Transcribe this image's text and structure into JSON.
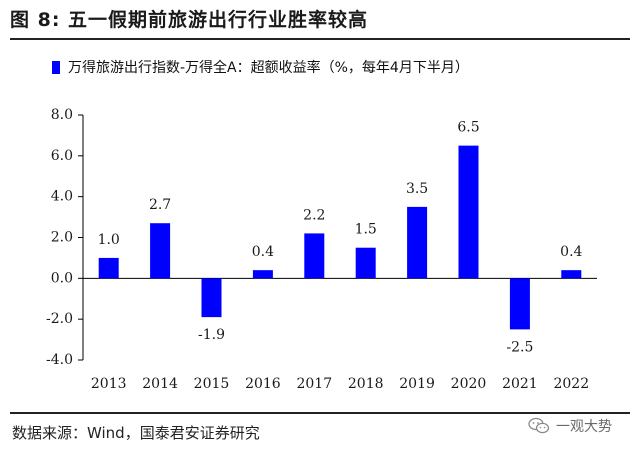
{
  "title": "图 8:  五一假期前旅游出行行业胜率较高",
  "source": "数据来源：Wind，国泰君安证券研究",
  "watermark": "一观大势",
  "colors": {
    "bar": "#0000ff",
    "text": "#1a1a1a",
    "axis": "#000000"
  },
  "chart_data": {
    "type": "bar",
    "title": "",
    "legend": "万得旅游出行指数-万得全A：超额收益率（%，每年4月下半月）",
    "legend_position": "top-left",
    "categories": [
      "2013",
      "2014",
      "2015",
      "2016",
      "2017",
      "2018",
      "2019",
      "2020",
      "2021",
      "2022"
    ],
    "values": [
      1.0,
      2.7,
      -1.9,
      0.4,
      2.2,
      1.5,
      3.5,
      6.5,
      -2.5,
      0.4
    ],
    "data_labels": [
      "1.0",
      "2.7",
      "-1.9",
      "0.4",
      "2.2",
      "1.5",
      "3.5",
      "6.5",
      "-2.5",
      "0.4"
    ],
    "yticks": [
      "8.0",
      "6.0",
      "4.0",
      "2.0",
      "0.0",
      "-2.0",
      "-4.0"
    ],
    "ylim": [
      -4.0,
      8.0
    ],
    "xlabel": "",
    "ylabel": "",
    "grid": false
  }
}
